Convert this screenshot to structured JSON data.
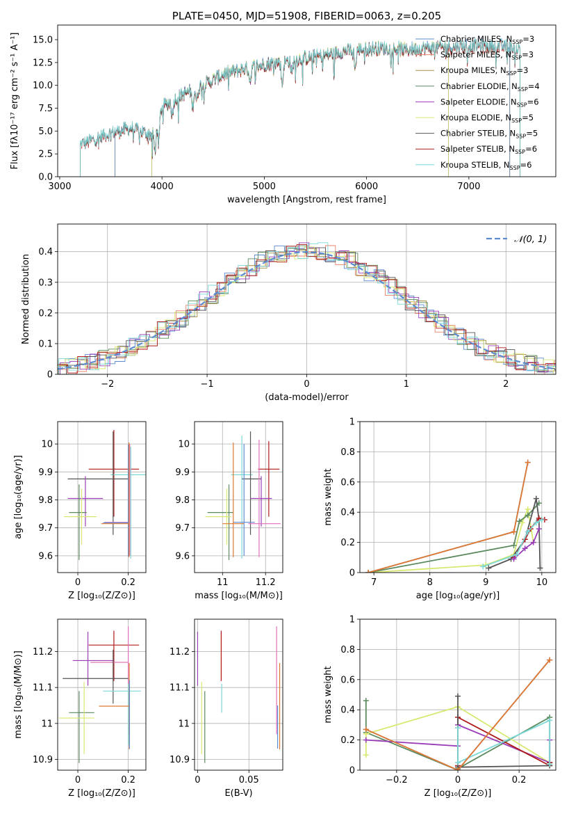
{
  "colors": {
    "chabrier_miles": "#5b8bd0",
    "salpeter_miles": "#e8826a",
    "kroupa_miles": "#a89048",
    "chabrier_elodie": "#5a8a5e",
    "salpeter_elodie": "#9a3cb8",
    "kroupa_elodie": "#d8e870",
    "chabrier_stelib": "#555555",
    "salpeter_stelib": "#b01a1a",
    "kroupa_stelib": "#7dd8d8",
    "pink": "#e070b8",
    "orange": "#e07830",
    "normal": "#5b8bd0",
    "grid": "#b0b0b0"
  },
  "chart_data": [
    {
      "id": "spectrum",
      "type": "line",
      "title": "PLATE=0450, MJD=51908, FIBERID=0063, z=0.205",
      "xlabel": "wavelength [Angstrom, rest frame]",
      "ylabel": "Flux [fλ10⁻¹⁷ erg cm⁻² s⁻¹ A⁻¹]",
      "xlim": [
        2980,
        7850
      ],
      "ylim": [
        0,
        16.6
      ],
      "xticks": [
        3000,
        4000,
        5000,
        6000,
        7000
      ],
      "yticks": [
        0.0,
        2.5,
        5.0,
        7.5,
        10.0,
        12.5,
        15.0
      ],
      "grid": false,
      "legend_position": "right",
      "legend": [
        {
          "key": "chabrier_miles",
          "label": "Chabrier MILES, N",
          "sub": "SSP",
          "suffix": "=3"
        },
        {
          "key": "salpeter_miles",
          "label": "Salpeter MILES, N",
          "sub": "SSP",
          "suffix": "=3"
        },
        {
          "key": "kroupa_miles",
          "label": "Kroupa MILES, N",
          "sub": "SSP",
          "suffix": "=3"
        },
        {
          "key": "chabrier_elodie",
          "label": "Chabrier ELODIE, N",
          "sub": "SSP",
          "suffix": "=4"
        },
        {
          "key": "salpeter_elodie",
          "label": "Salpeter ELODIE, N",
          "sub": "SSP",
          "suffix": "=6"
        },
        {
          "key": "kroupa_elodie",
          "label": "Kroupa ELODIE, N",
          "sub": "SSP",
          "suffix": "=5"
        },
        {
          "key": "chabrier_stelib",
          "label": "Chabrier STELIB, N",
          "sub": "SSP",
          "suffix": "=5"
        },
        {
          "key": "salpeter_stelib",
          "label": "Salpeter STELIB, N",
          "sub": "SSP",
          "suffix": "=6"
        },
        {
          "key": "kroupa_stelib",
          "label": "Kroupa STELIB, N",
          "sub": "SSP",
          "suffix": "=6"
        }
      ],
      "continuum": [
        [
          3200,
          3.5
        ],
        [
          3500,
          4.8
        ],
        [
          3700,
          5.3
        ],
        [
          3900,
          4.6
        ],
        [
          4000,
          7.6
        ],
        [
          4200,
          9.0
        ],
        [
          4400,
          10.0
        ],
        [
          4600,
          11.2
        ],
        [
          4800,
          11.8
        ],
        [
          5000,
          12.3
        ],
        [
          5200,
          12.6
        ],
        [
          5400,
          13.0
        ],
        [
          5600,
          13.3
        ],
        [
          5800,
          13.8
        ],
        [
          6000,
          14.0
        ],
        [
          6200,
          14.1
        ],
        [
          6400,
          13.9
        ],
        [
          6600,
          14.1
        ],
        [
          6800,
          14.2
        ],
        [
          7000,
          14.3
        ],
        [
          7200,
          14.3
        ],
        [
          7400,
          14.2
        ],
        [
          7500,
          14.0
        ]
      ],
      "absorption_lines": [
        [
          3933,
          3.2
        ],
        [
          3968,
          3.0
        ],
        [
          4101,
          1.5
        ],
        [
          4300,
          1.8
        ],
        [
          4340,
          1.5
        ],
        [
          4861,
          1.5
        ],
        [
          5175,
          2.5
        ],
        [
          5270,
          1.5
        ],
        [
          5890,
          2.0
        ]
      ],
      "model_coverage": {
        "salpeter_miles": [
          3540,
          7400
        ],
        "kroupa_miles": [
          3540,
          7400
        ],
        "chabrier_miles": [
          3540,
          7400
        ],
        "chabrier_elodie": [
          3900,
          6800
        ],
        "salpeter_elodie": [
          3900,
          6800
        ],
        "kroupa_elodie": [
          3900,
          6800
        ],
        "chabrier_stelib": [
          3200,
          7500
        ],
        "salpeter_stelib": [
          3200,
          7500
        ],
        "kroupa_stelib": [
          3200,
          7500
        ]
      }
    },
    {
      "id": "residuals",
      "type": "histogram",
      "xlabel": "(data-model)/error",
      "ylabel": "Normed distribution",
      "xlim": [
        -2.5,
        2.5
      ],
      "ylim": [
        0,
        0.49
      ],
      "xticks": [
        -2,
        -1,
        0,
        1,
        2
      ],
      "yticks": [
        0.0,
        0.1,
        0.2,
        0.3,
        0.4
      ],
      "grid": true,
      "legend_position": "top-right",
      "legend": [
        {
          "label": "𝒩(0, 1)",
          "style": "dashed"
        }
      ],
      "bin_width": 0.1
    },
    {
      "id": "age_vs_Z",
      "type": "errorbar",
      "xlabel": "Z [log₁₀(Z/Z⊙)]",
      "ylabel": "age  [log₁₀(age/yr)]",
      "xlim": [
        -0.08,
        0.27
      ],
      "ylim": [
        9.54,
        10.08
      ],
      "xticks": [
        0.0,
        0.2
      ],
      "yticks": [
        9.6,
        9.7,
        9.8,
        9.9,
        10.0
      ],
      "grid": true,
      "points": [
        {
          "key": "salpeter_stelib",
          "x": 0.143,
          "xerr": [
            0.1,
            0.1
          ],
          "y": 9.91,
          "yerr": [
            0.17,
            0.14
          ]
        },
        {
          "key": "kroupa_stelib",
          "x": 0.21,
          "xerr": [
            0.08,
            0.08
          ],
          "y": 9.89,
          "yerr": [
            0.3,
            0.1
          ]
        },
        {
          "key": "chabrier_stelib",
          "x": 0.14,
          "xerr": [
            0.18,
            0.06
          ],
          "y": 9.875,
          "yerr": [
            0.2,
            0.17
          ]
        },
        {
          "key": "salpeter_elodie",
          "x": 0.03,
          "xerr": [
            0.07,
            0.07
          ],
          "y": 9.805,
          "yerr": [
            0.1,
            0.08
          ]
        },
        {
          "key": "chabrier_elodie",
          "x": 0.005,
          "xerr": [
            0.04,
            0.03
          ],
          "y": 9.755,
          "yerr": [
            0.17,
            0.1
          ]
        },
        {
          "key": "kroupa_elodie",
          "x": 0.015,
          "xerr": [
            0.07,
            0.06
          ],
          "y": 9.74,
          "yerr": [
            0.1,
            0.1
          ]
        },
        {
          "key": "pink",
          "x": 0.206,
          "xerr": [
            0.1,
            0.0
          ],
          "y": 9.72,
          "yerr": [
            0.12,
            0.28
          ]
        },
        {
          "key": "chabrier_miles",
          "x": 0.2,
          "xerr": [
            0.1,
            0.0
          ],
          "y": 9.718,
          "yerr": [
            0.12,
            0.28
          ]
        },
        {
          "key": "orange",
          "x": 0.203,
          "xerr": [
            0.11,
            0.0
          ],
          "y": 9.715,
          "yerr": [
            0.12,
            0.29
          ]
        }
      ]
    },
    {
      "id": "age_vs_mass",
      "type": "errorbar",
      "xlabel": "mass [log₁₀(M/M⊙)]",
      "ylabel": "",
      "xlim": [
        10.87,
        11.28
      ],
      "ylim": [
        9.54,
        10.08
      ],
      "xticks": [
        11.0,
        11.2
      ],
      "yticks": [
        9.6,
        9.7,
        9.8,
        9.9,
        10.0
      ],
      "grid": true,
      "points": [
        {
          "key": "salpeter_stelib",
          "x": 11.215,
          "xerr": [
            0.05,
            0.05
          ],
          "y": 9.91,
          "yerr": [
            0.17,
            0.1
          ]
        },
        {
          "key": "kroupa_stelib",
          "x": 11.09,
          "xerr": [
            0.05,
            0.05
          ],
          "y": 9.89,
          "yerr": [
            0.3,
            0.14
          ]
        },
        {
          "key": "chabrier_stelib",
          "x": 11.13,
          "xerr": [
            0.04,
            0.05
          ],
          "y": 9.875,
          "yerr": [
            0.2,
            0.17
          ]
        },
        {
          "key": "salpeter_elodie",
          "x": 11.18,
          "xerr": [
            0.05,
            0.05
          ],
          "y": 9.805,
          "yerr": [
            0.1,
            0.08
          ]
        },
        {
          "key": "chabrier_elodie",
          "x": 11.03,
          "xerr": [
            0.1,
            0.02
          ],
          "y": 9.755,
          "yerr": [
            0.17,
            0.1
          ]
        },
        {
          "key": "kroupa_elodie",
          "x": 11.02,
          "xerr": [
            0.1,
            0.02
          ],
          "y": 9.74,
          "yerr": [
            0.1,
            0.1
          ]
        },
        {
          "key": "pink",
          "x": 11.17,
          "xerr": [
            0.05,
            0.1
          ],
          "y": 9.715,
          "yerr": [
            0.12,
            0.3
          ]
        },
        {
          "key": "chabrier_miles",
          "x": 11.1,
          "xerr": [
            0.05,
            0.05
          ],
          "y": 9.72,
          "yerr": [
            0.12,
            0.28
          ]
        },
        {
          "key": "orange",
          "x": 11.05,
          "xerr": [
            0.05,
            0.05
          ],
          "y": 9.715,
          "yerr": [
            0.12,
            0.29
          ]
        }
      ]
    },
    {
      "id": "mw_vs_age",
      "type": "line",
      "xlabel": "age  [log₁₀(age/yr)]",
      "ylabel": "mass weight",
      "xlim": [
        6.75,
        10.25
      ],
      "ylim": [
        0,
        1.0
      ],
      "xticks": [
        7,
        8,
        9,
        10
      ],
      "yticks": [
        0.0,
        0.2,
        0.4,
        0.6,
        0.8,
        1.0
      ],
      "grid": true,
      "series": [
        {
          "key": "kroupa_elodie",
          "x": [
            6.9,
            9.0,
            9.5,
            9.65,
            9.75,
            9.85
          ],
          "y": [
            0.0,
            0.05,
            0.12,
            0.33,
            0.42,
            0.2
          ]
        },
        {
          "key": "chabrier_elodie",
          "x": [
            6.9,
            9.5,
            9.6,
            9.75,
            9.95
          ],
          "y": [
            0.0,
            0.18,
            0.34,
            0.38,
            0.46
          ]
        },
        {
          "key": "chabrier_stelib",
          "x": [
            9.05,
            9.45,
            9.7,
            9.9,
            9.95,
            9.97
          ],
          "y": [
            0.03,
            0.09,
            0.22,
            0.49,
            0.35,
            0.03
          ]
        },
        {
          "key": "salpeter_stelib",
          "x": [
            9.5,
            9.7,
            9.8,
            9.95,
            10.05
          ],
          "y": [
            0.1,
            0.22,
            0.29,
            0.36,
            0.35
          ]
        },
        {
          "key": "salpeter_elodie",
          "x": [
            9.5,
            9.7,
            9.85,
            9.95
          ],
          "y": [
            0.09,
            0.16,
            0.2,
            0.29
          ]
        },
        {
          "key": "kroupa_stelib",
          "x": [
            8.95,
            9.55,
            9.75,
            9.9,
            10.0
          ],
          "y": [
            0.04,
            0.12,
            0.27,
            0.33,
            0.35
          ]
        },
        {
          "key": "chabrier_miles",
          "x": [
            6.9,
            9.5,
            9.75
          ],
          "y": [
            0.0,
            0.27,
            0.73
          ]
        },
        {
          "key": "orange",
          "x": [
            6.9,
            9.5,
            9.75
          ],
          "y": [
            0.0,
            0.27,
            0.73
          ]
        }
      ]
    },
    {
      "id": "mass_vs_Z",
      "type": "errorbar",
      "xlabel": "Z [log₁₀(Z/Z⊙)]",
      "ylabel": "mass [log₁₀(M/M⊙)]",
      "xlim": [
        -0.08,
        0.27
      ],
      "ylim": [
        10.87,
        11.29
      ],
      "xticks": [
        0.0,
        0.2
      ],
      "yticks": [
        10.9,
        11.0,
        11.1,
        11.2
      ],
      "grid": true,
      "points": [
        {
          "key": "salpeter_stelib",
          "x": 0.143,
          "xerr": [
            0.1,
            0.1
          ],
          "y": 11.218,
          "yerr": [
            0.1,
            0.04
          ]
        },
        {
          "key": "salpeter_elodie",
          "x": 0.04,
          "xerr": [
            0.06,
            0.1
          ],
          "y": 11.175,
          "yerr": [
            0.07,
            0.08
          ]
        },
        {
          "key": "pink",
          "x": 0.2,
          "xerr": [
            0.15,
            0.0
          ],
          "y": 11.17,
          "yerr": [
            0.2,
            0.1
          ]
        },
        {
          "key": "chabrier_stelib",
          "x": 0.14,
          "xerr": [
            0.2,
            0.06
          ],
          "y": 11.125,
          "yerr": [
            0.07,
            0.08
          ]
        },
        {
          "key": "kroupa_stelib",
          "x": 0.2,
          "xerr": [
            0.1,
            0.05
          ],
          "y": 11.09,
          "yerr": [
            0.15,
            0.02
          ]
        },
        {
          "key": "orange",
          "x": 0.204,
          "xerr": [
            0.12,
            0.0
          ],
          "y": 11.048,
          "yerr": [
            0.12,
            0.12
          ]
        },
        {
          "key": "chabrier_elodie",
          "x": 0.005,
          "xerr": [
            0.04,
            0.06
          ],
          "y": 11.03,
          "yerr": [
            0.14,
            0.06
          ]
        },
        {
          "key": "kroupa_elodie",
          "x": 0.025,
          "xerr": [
            0.1,
            0.04
          ],
          "y": 11.015,
          "yerr": [
            0.1,
            0.1
          ]
        },
        {
          "key": "chabrier_miles",
          "x": 0.205,
          "xerr": [
            0.0,
            0.0
          ],
          "y": 11.02,
          "yerr": [
            0.09,
            0.1
          ]
        }
      ]
    },
    {
      "id": "mass_vs_EBV",
      "type": "errorbar",
      "xlabel": "E(B-V)",
      "ylabel": "",
      "xlim": [
        -0.003,
        0.083
      ],
      "ylim": [
        10.87,
        11.29
      ],
      "xticks": [
        0.0,
        0.05
      ],
      "yticks": [
        10.9,
        11.0,
        11.1,
        11.2
      ],
      "grid": true,
      "points": [
        {
          "key": "salpeter_elodie",
          "x": 0.0,
          "y": 11.175,
          "yerr": [
            0.07,
            0.08
          ]
        },
        {
          "key": "kroupa_elodie",
          "x": 0.004,
          "y": 11.015,
          "yerr": [
            0.1,
            0.1
          ]
        },
        {
          "key": "chabrier_elodie",
          "x": 0.007,
          "y": 11.03,
          "yerr": [
            0.14,
            0.06
          ]
        },
        {
          "key": "salpeter_stelib",
          "x": 0.023,
          "y": 11.218,
          "yerr": [
            0.1,
            0.04
          ]
        },
        {
          "key": "kroupa_stelib",
          "x": 0.0235,
          "y": 11.09,
          "yerr": [
            0.06,
            0.02
          ]
        },
        {
          "key": "pink",
          "x": 0.077,
          "y": 11.17,
          "yerr": [
            0.2,
            0.1
          ]
        },
        {
          "key": "chabrier_miles",
          "x": 0.078,
          "y": 11.0,
          "yerr": [
            0.07,
            0.05
          ]
        },
        {
          "key": "orange",
          "x": 0.08,
          "y": 11.048,
          "yerr": [
            0.12,
            0.12
          ]
        }
      ]
    },
    {
      "id": "mw_vs_Z",
      "type": "line",
      "xlabel": "Z [log₁₀(Z/Z⊙)]",
      "ylabel": "mass weight",
      "xlim": [
        -0.32,
        0.32
      ],
      "ylim": [
        0,
        1.0
      ],
      "xticks": [
        -0.2,
        0.0,
        0.2
      ],
      "yticks": [
        0.0,
        0.2,
        0.4,
        0.6,
        0.8,
        1.0
      ],
      "grid": true,
      "series": [
        {
          "key": "chabrier_elodie",
          "x": [
            -0.3,
            -0.3,
            0.0,
            0.0,
            0.3,
            0.3
          ],
          "y": [
            0.46,
            0.25,
            0.0,
            0.01,
            0.35,
            0.05
          ]
        },
        {
          "key": "kroupa_elodie",
          "x": [
            -0.3,
            -0.3,
            0.0,
            0.3,
            0.3
          ],
          "y": [
            0.1,
            0.24,
            0.42,
            0.05,
            0.04
          ]
        },
        {
          "key": "salpeter_elodie",
          "x": [
            -0.3,
            0.0,
            0.0,
            0.3,
            0.3
          ],
          "y": [
            0.2,
            0.16,
            0.3,
            0.05,
            0.2
          ]
        },
        {
          "key": "salpeter_stelib",
          "x": [
            0.0,
            0.0,
            0.3,
            0.3
          ],
          "y": [
            0.03,
            0.35,
            0.03,
            0.05
          ]
        },
        {
          "key": "chabrier_stelib",
          "x": [
            0.0,
            0.0,
            0.3
          ],
          "y": [
            0.49,
            0.02,
            0.03
          ]
        },
        {
          "key": "kroupa_stelib",
          "x": [
            0.0,
            0.0,
            0.3,
            0.3
          ],
          "y": [
            0.28,
            0.05,
            0.33,
            0.04
          ]
        },
        {
          "key": "chabrier_miles",
          "x": [
            -0.3,
            0.0,
            0.3
          ],
          "y": [
            0.27,
            0.0,
            0.73
          ]
        },
        {
          "key": "orange",
          "x": [
            -0.3,
            0.0,
            0.3
          ],
          "y": [
            0.27,
            0.0,
            0.73
          ]
        }
      ]
    }
  ]
}
